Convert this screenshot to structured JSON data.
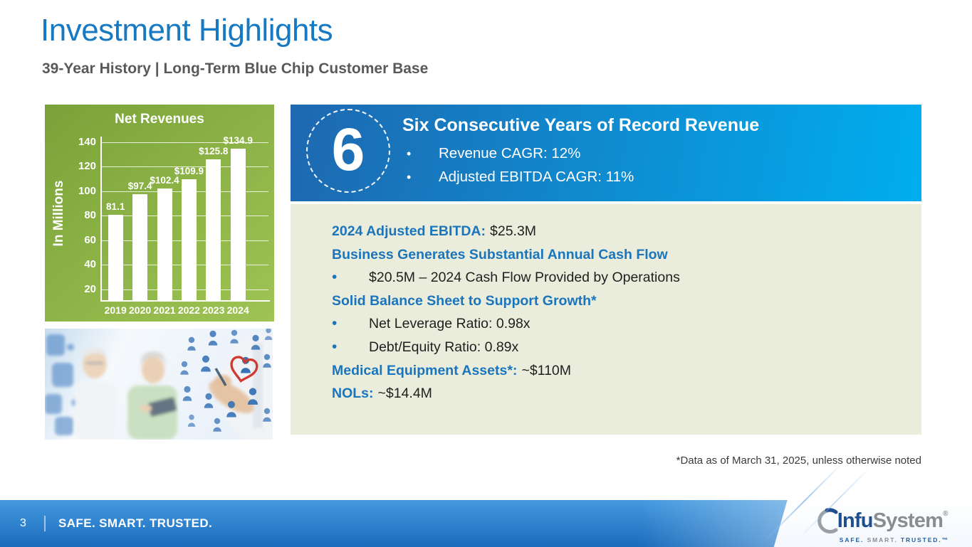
{
  "slide": {
    "title": "Investment Highlights",
    "subtitle": "39-Year History | Long-Term Blue Chip Customer Base",
    "footnote": "*Data as of March 31, 2025, unless otherwise noted"
  },
  "chart_data": {
    "type": "bar",
    "title": "Net Revenues",
    "ylabel": "In Millions",
    "categories": [
      "2019",
      "2020",
      "2021",
      "2022",
      "2023",
      "2024"
    ],
    "values": [
      81.1,
      97.4,
      102.4,
      109.9,
      125.8,
      134.9
    ],
    "bar_labels": [
      "81.1",
      "$97.4",
      "$102.4",
      "$109.9",
      "$125.8",
      "$134.9"
    ],
    "yticks": [
      20,
      40,
      60,
      80,
      100,
      120,
      140
    ],
    "ylim": [
      10.7,
      140
    ],
    "grid": true,
    "legend": false,
    "bar_color": "#ffffff",
    "panel_gradient": [
      "#7aa238",
      "#9fc455"
    ]
  },
  "banner": {
    "number": "6",
    "title": "Six Consecutive Years of Record Revenue",
    "bullets": [
      "Revenue CAGR: 12%",
      "Adjusted EBITDA CAGR: 11%"
    ],
    "gradient": [
      "#1e68b0",
      "#00aeef"
    ]
  },
  "info_panel": {
    "background": "#eaeddb",
    "accent": "#1b75bc",
    "items": [
      {
        "type": "heading-value",
        "label": "2024 Adjusted EBITDA:",
        "value": "$25.3M"
      },
      {
        "type": "heading",
        "label": "Business Generates Substantial Annual Cash Flow"
      },
      {
        "type": "bullet",
        "text": "$20.5M – 2024 Cash Flow Provided by Operations"
      },
      {
        "type": "heading",
        "label": "Solid Balance Sheet to Support Growth*"
      },
      {
        "type": "bullet",
        "text": "Net Leverage Ratio: 0.98x"
      },
      {
        "type": "bullet",
        "text": "Debt/Equity Ratio: 0.89x"
      },
      {
        "type": "heading-value",
        "label": "Medical Equipment Assets*:",
        "value": "~$110M"
      },
      {
        "type": "heading-value",
        "label": "NOLs:",
        "value": "~$14.4M"
      }
    ]
  },
  "footer": {
    "page_number": "3",
    "tagline": "SAFE. SMART. TRUSTED.",
    "gradient": [
      "#4499df",
      "#1b6cbc"
    ],
    "logo": {
      "part1": "Infu",
      "part2": "System",
      "registered": "®",
      "tagline_parts": [
        "SAFE.",
        "SMART.",
        "TRUSTED.™"
      ]
    }
  },
  "colors": {
    "title_blue": "#1779c1",
    "subtitle_gray": "#595959"
  }
}
